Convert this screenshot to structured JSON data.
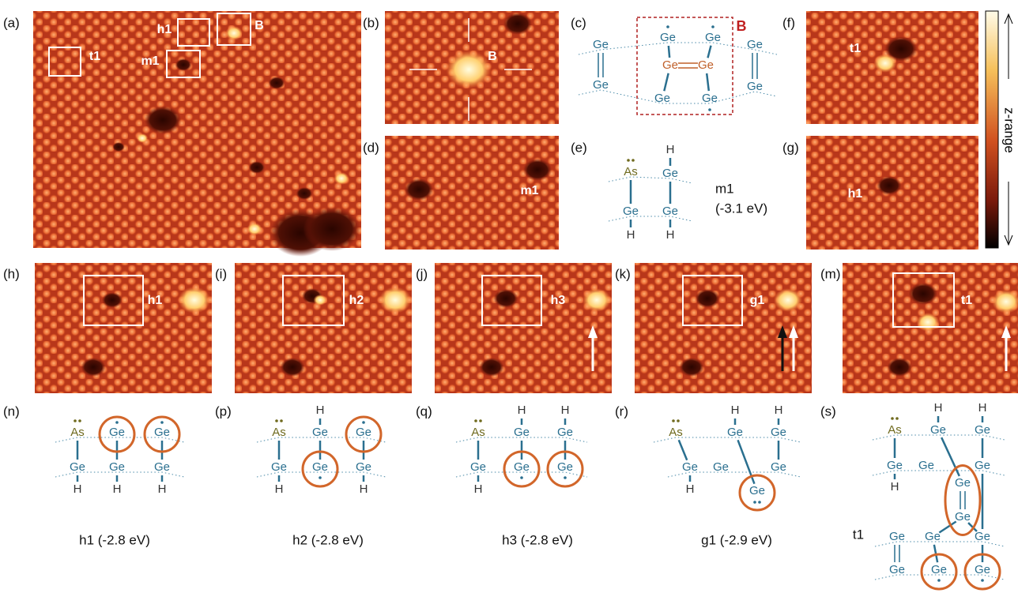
{
  "panels": [
    {
      "label": "(a)",
      "annotations": [
        "t1",
        "h1",
        "B",
        "m1"
      ]
    },
    {
      "label": "(b)",
      "annotations": [
        "B"
      ]
    },
    {
      "label": "(c)",
      "annotations": []
    },
    {
      "label": "(d)",
      "annotations": [
        "m1"
      ]
    },
    {
      "label": "(e)",
      "annotations": []
    },
    {
      "label": "(f)",
      "annotations": [
        "t1"
      ]
    },
    {
      "label": "(g)",
      "annotations": [
        "h1"
      ]
    },
    {
      "label": "(h)",
      "annotations": [
        "h1"
      ]
    },
    {
      "label": "(i)",
      "annotations": [
        "h2"
      ]
    },
    {
      "label": "(j)",
      "annotations": [
        "h3"
      ]
    },
    {
      "label": "(k)",
      "annotations": [
        "g1"
      ]
    },
    {
      "label": "(m)",
      "annotations": [
        "t1"
      ]
    },
    {
      "label": "(n)",
      "annotations": []
    },
    {
      "label": "(p)",
      "annotations": []
    },
    {
      "label": "(q)",
      "annotations": []
    },
    {
      "label": "(r)",
      "annotations": []
    },
    {
      "label": "(s)",
      "annotations": []
    }
  ],
  "colorbar": {
    "label": "z-range"
  },
  "diagrams": {
    "c": {
      "atoms": [
        "Ge",
        "Ge",
        "Ge",
        "Ge",
        "Ge",
        "Ge",
        "Ge",
        "Ge",
        "Ge",
        "Ge"
      ],
      "box_label": "B"
    },
    "e": {
      "atoms": [
        "As",
        "H",
        "Ge",
        "Ge",
        "Ge",
        "H",
        "H"
      ],
      "name": "m1",
      "energy": "(-3.1 eV)"
    },
    "n": {
      "atoms": [
        "As",
        "Ge",
        "Ge",
        "Ge",
        "Ge",
        "Ge",
        "H",
        "H",
        "H"
      ],
      "caption": "h1 (-2.8 eV)"
    },
    "p": {
      "atoms": [
        "As",
        "H",
        "Ge",
        "Ge",
        "Ge",
        "Ge",
        "Ge",
        "H",
        "H"
      ],
      "caption": "h2 (-2.8 eV)"
    },
    "q": {
      "atoms": [
        "As",
        "H",
        "H",
        "Ge",
        "Ge",
        "Ge",
        "Ge",
        "Ge",
        "H"
      ],
      "caption": "h3 (-2.8 eV)"
    },
    "r": {
      "atoms": [
        "As",
        "H",
        "H",
        "Ge",
        "Ge",
        "Ge",
        "Ge",
        "Ge",
        "Ge",
        "H"
      ],
      "caption": "g1 (-2.9 eV)"
    },
    "s": {
      "atoms": [
        "As",
        "H",
        "H",
        "Ge",
        "Ge",
        "Ge",
        "Ge",
        "Ge",
        "H",
        "Ge",
        "Ge",
        "Ge",
        "Ge",
        "Ge",
        "Ge",
        "Ge",
        "Ge"
      ],
      "name": "t1"
    }
  }
}
